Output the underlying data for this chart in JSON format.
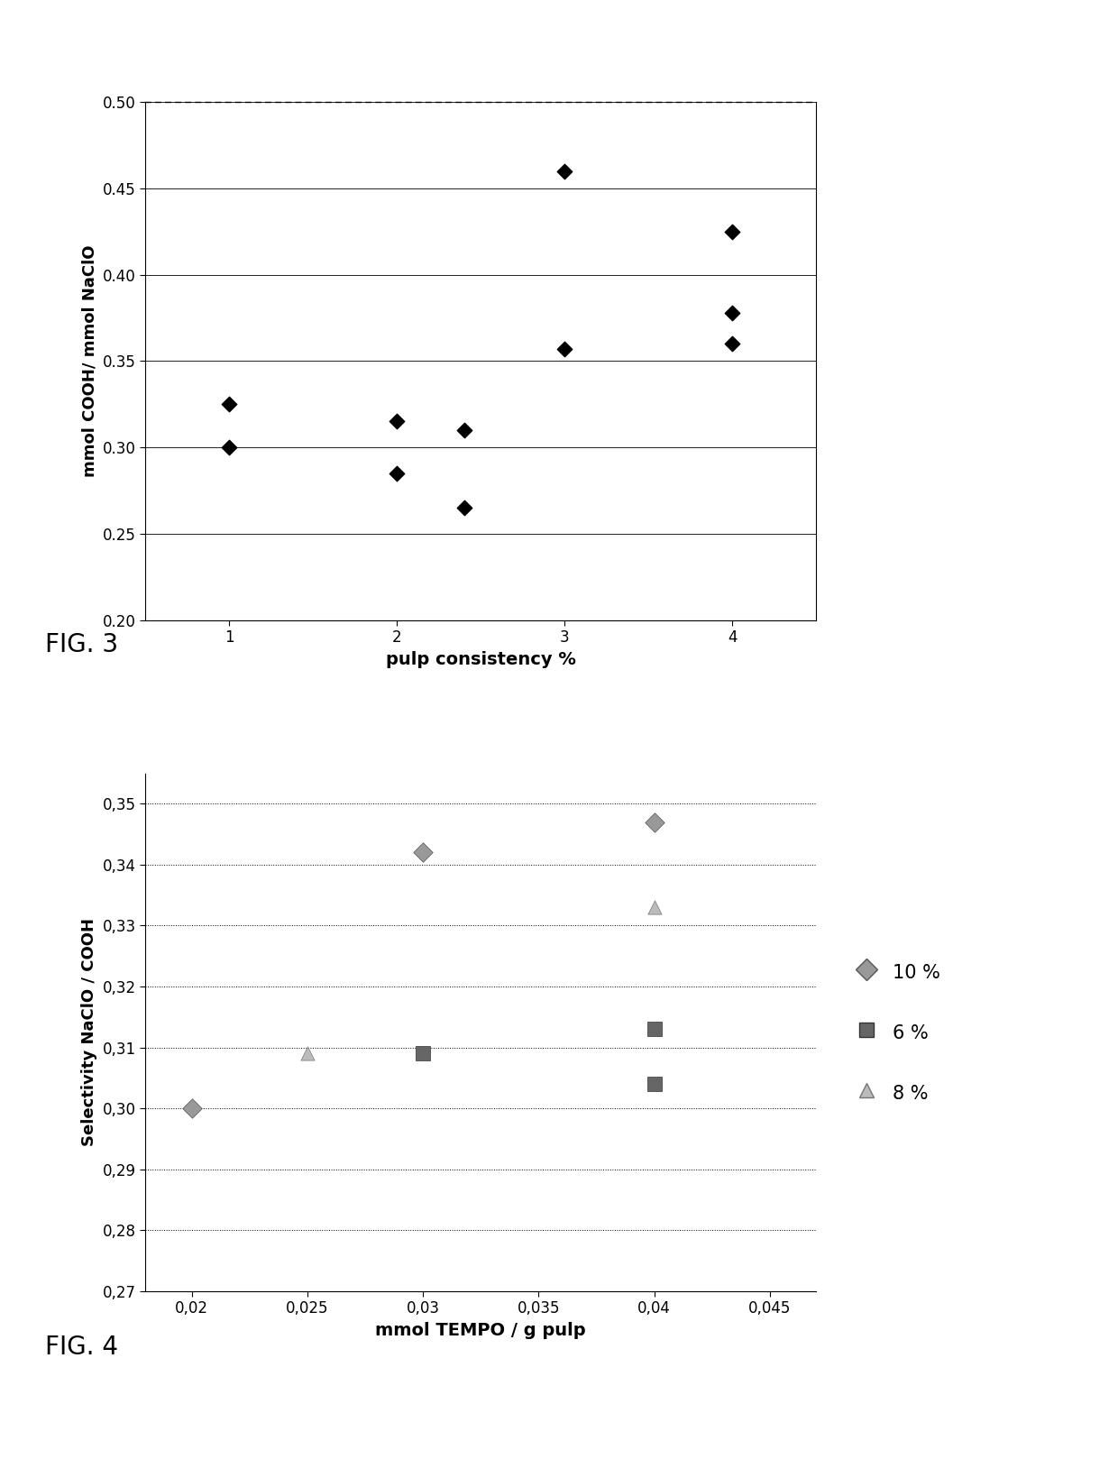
{
  "fig3": {
    "x": [
      1,
      1,
      2,
      2,
      2.4,
      2.4,
      3,
      3,
      4,
      4,
      4
    ],
    "y": [
      0.325,
      0.3,
      0.315,
      0.285,
      0.31,
      0.265,
      0.46,
      0.357,
      0.425,
      0.378,
      0.36
    ],
    "xlabel": "pulp consistency %",
    "ylabel": "mmol COOH/ mmol NaClO",
    "ylim": [
      0.2,
      0.5
    ],
    "xlim": [
      0.5,
      4.5
    ],
    "yticks": [
      0.2,
      0.25,
      0.3,
      0.35,
      0.4,
      0.45,
      0.5
    ],
    "xticks": [
      1,
      2,
      3,
      4
    ],
    "fig_label": "FIG. 3"
  },
  "fig4": {
    "series_10": {
      "label": "10 %",
      "x": [
        0.02,
        0.03,
        0.04
      ],
      "y": [
        0.3,
        0.342,
        0.347
      ],
      "marker": "D",
      "size": 120
    },
    "series_6": {
      "label": "6 %",
      "x": [
        0.03,
        0.04,
        0.04
      ],
      "y": [
        0.309,
        0.313,
        0.304
      ],
      "marker": "s",
      "size": 130
    },
    "series_8": {
      "label": "8 %",
      "x": [
        0.025,
        0.04
      ],
      "y": [
        0.309,
        0.333
      ],
      "marker": "^",
      "size": 120
    },
    "xlabel": "mmol TEMPO / g pulp",
    "ylabel": "Selectivity NaClO / COOH",
    "ylim": [
      0.27,
      0.355
    ],
    "xlim": [
      0.018,
      0.047
    ],
    "yticks": [
      0.27,
      0.28,
      0.29,
      0.3,
      0.31,
      0.32,
      0.33,
      0.34,
      0.35
    ],
    "xticks": [
      0.02,
      0.025,
      0.03,
      0.035,
      0.04,
      0.045
    ],
    "fig_label": "FIG. 4"
  }
}
